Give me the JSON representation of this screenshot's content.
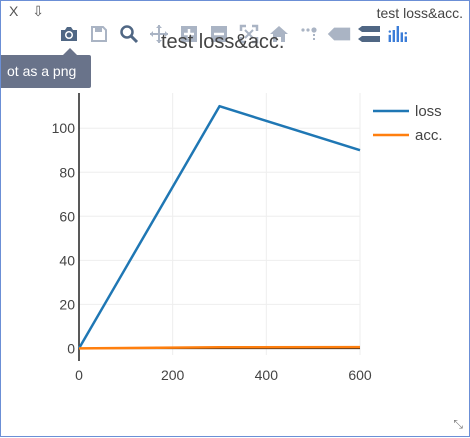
{
  "window": {
    "title": "test loss&acc.",
    "controls": [
      "X",
      "⇩"
    ]
  },
  "modebar": {
    "buttons": [
      {
        "name": "camera-icon"
      },
      {
        "name": "save-icon"
      },
      {
        "name": "zoom-icon"
      },
      {
        "name": "pan-icon"
      },
      {
        "name": "zoom-in-icon"
      },
      {
        "name": "zoom-out-icon"
      },
      {
        "name": "autoscale-icon"
      },
      {
        "name": "home-icon"
      },
      {
        "name": "spike-lines-icon"
      },
      {
        "name": "hover-closest-icon"
      },
      {
        "name": "hover-compare-icon"
      },
      {
        "name": "plotly-logo-icon"
      }
    ],
    "tooltip": "ot as a png"
  },
  "chart_data": {
    "type": "line",
    "title": "test loss&acc.",
    "xlabel": "",
    "ylabel": "",
    "xlim": [
      0,
      600
    ],
    "ylim": [
      -3,
      116
    ],
    "x_ticks": [
      0,
      200,
      400,
      600
    ],
    "y_ticks": [
      0,
      20,
      40,
      60,
      80,
      100
    ],
    "grid": true,
    "legend": "top-right",
    "series": [
      {
        "name": "loss",
        "color": "#1f77b4",
        "x": [
          0,
          300,
          600
        ],
        "y": [
          0,
          110,
          90
        ]
      },
      {
        "name": "acc.",
        "color": "#ff7f0e",
        "x": [
          0,
          300,
          600
        ],
        "y": [
          0,
          0.5,
          0.6
        ]
      }
    ]
  }
}
